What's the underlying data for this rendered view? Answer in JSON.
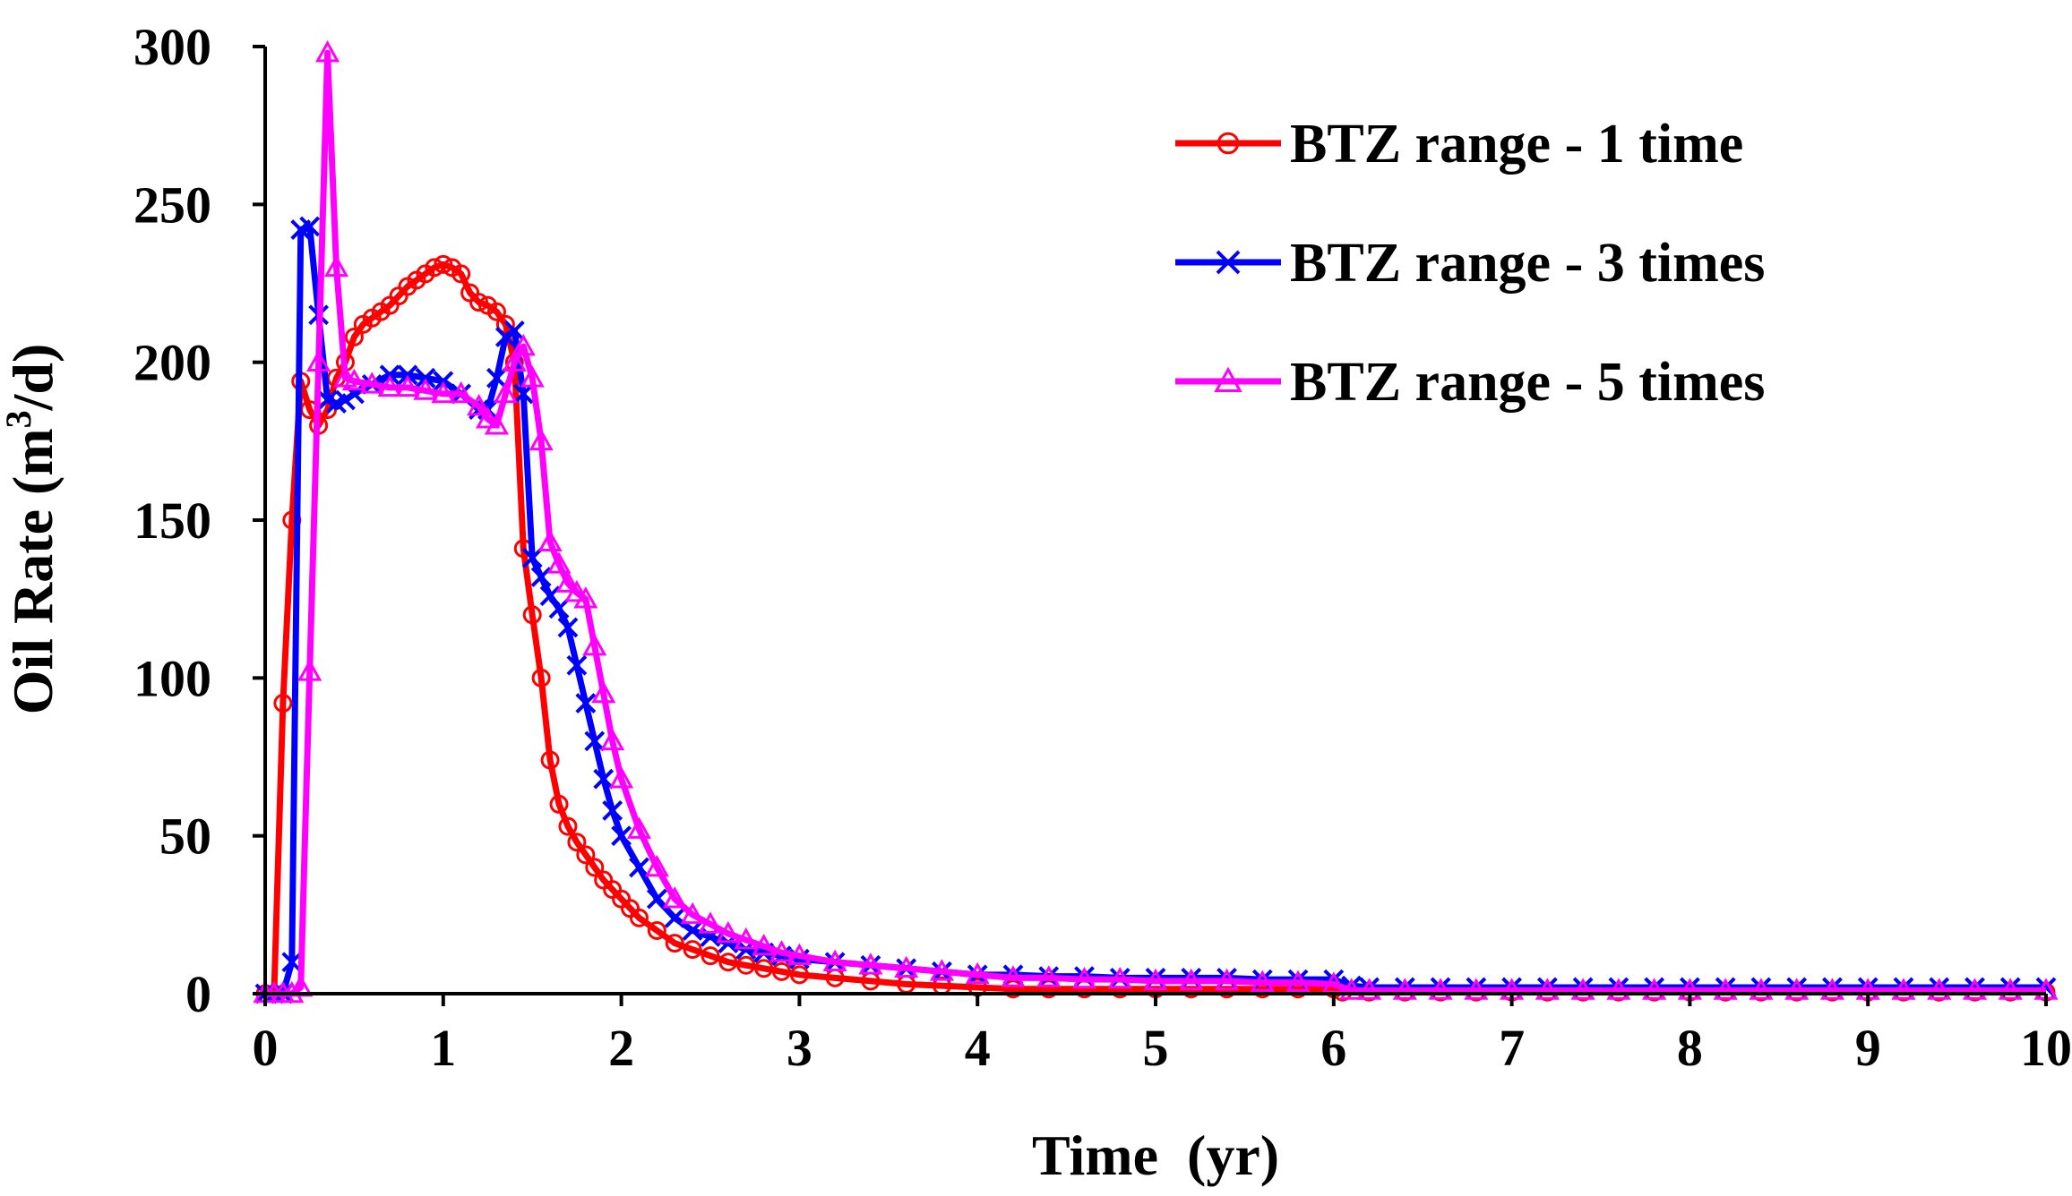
{
  "chart_data": {
    "type": "line",
    "title": "",
    "xlabel": "Time  (yr)",
    "ylabel_main": "Oil Rate (m",
    "ylabel_sup": "3",
    "ylabel_tail": "/d)",
    "xlim": [
      0,
      10
    ],
    "ylim": [
      0,
      300
    ],
    "xticks": [
      "0",
      "1",
      "2",
      "3",
      "4",
      "5",
      "6",
      "7",
      "8",
      "9",
      "10"
    ],
    "yticks": [
      "0",
      "50",
      "100",
      "150",
      "200",
      "250",
      "300"
    ],
    "grid": false,
    "legend_position": "top-right",
    "series": [
      {
        "name": "BTZ range - 1 time",
        "color": "#ff0000",
        "marker": "circle",
        "x": [
          0.0,
          0.05,
          0.1,
          0.15,
          0.2,
          0.25,
          0.3,
          0.35,
          0.4,
          0.45,
          0.5,
          0.55,
          0.6,
          0.65,
          0.7,
          0.75,
          0.8,
          0.85,
          0.9,
          0.95,
          1.0,
          1.05,
          1.1,
          1.15,
          1.2,
          1.25,
          1.3,
          1.35,
          1.4,
          1.45,
          1.5,
          1.55,
          1.6,
          1.65,
          1.7,
          1.75,
          1.8,
          1.85,
          1.9,
          1.95,
          2.0,
          2.05,
          2.1,
          2.2,
          2.3,
          2.4,
          2.5,
          2.6,
          2.7,
          2.8,
          2.9,
          3.0,
          3.2,
          3.4,
          3.6,
          3.8,
          4.0,
          4.2,
          4.4,
          4.6,
          4.8,
          5.0,
          5.2,
          5.4,
          5.6,
          5.8,
          6.0,
          6.05,
          6.2,
          6.4,
          6.6,
          6.8,
          7.0,
          7.2,
          7.4,
          7.6,
          7.8,
          8.0,
          8.2,
          8.4,
          8.6,
          8.8,
          9.0,
          9.2,
          9.4,
          9.6,
          9.8,
          10.0
        ],
        "y": [
          0,
          0,
          92,
          150,
          194,
          185,
          180,
          185,
          195,
          200,
          208,
          212,
          214,
          216,
          218,
          221,
          224,
          226,
          228,
          230,
          231,
          230,
          228,
          222,
          219,
          218,
          216,
          212,
          200,
          141,
          120,
          100,
          74,
          60,
          53,
          48,
          44,
          40,
          36,
          33,
          30,
          27,
          24,
          20,
          16,
          14,
          12,
          10,
          9,
          8,
          7,
          6,
          5,
          4,
          3,
          2.5,
          2,
          1.5,
          1.5,
          1.5,
          1.5,
          1.5,
          1.5,
          1.5,
          1.5,
          1.5,
          1.5,
          0.5,
          0.5,
          0.5,
          0.5,
          0.5,
          0.5,
          0.5,
          0.5,
          0.5,
          0.5,
          0.5,
          0.5,
          0.5,
          0.5,
          0.5,
          0.5,
          0.5,
          0.5,
          0.5,
          0.5,
          0.5
        ]
      },
      {
        "name": "BTZ range - 3 times",
        "color": "#0000ff",
        "marker": "x",
        "x": [
          0.0,
          0.05,
          0.1,
          0.15,
          0.2,
          0.25,
          0.3,
          0.35,
          0.4,
          0.45,
          0.5,
          0.6,
          0.7,
          0.8,
          0.9,
          1.0,
          1.1,
          1.2,
          1.25,
          1.3,
          1.35,
          1.4,
          1.45,
          1.5,
          1.55,
          1.6,
          1.65,
          1.7,
          1.75,
          1.8,
          1.85,
          1.9,
          1.95,
          2.0,
          2.1,
          2.2,
          2.3,
          2.4,
          2.5,
          2.6,
          2.7,
          2.8,
          2.9,
          3.0,
          3.2,
          3.4,
          3.6,
          3.8,
          4.0,
          4.2,
          4.4,
          4.6,
          4.8,
          5.0,
          5.2,
          5.4,
          5.6,
          5.8,
          6.0,
          6.1,
          6.2,
          6.4,
          6.6,
          6.8,
          7.0,
          7.2,
          7.4,
          7.6,
          7.8,
          8.0,
          8.2,
          8.4,
          8.6,
          8.8,
          9.0,
          9.2,
          9.4,
          9.6,
          9.8,
          10.0
        ],
        "y": [
          0,
          0,
          0,
          10,
          242,
          243,
          215,
          188,
          187,
          188,
          190,
          193,
          196,
          196,
          195,
          194,
          190,
          185,
          185,
          195,
          208,
          210,
          190,
          138,
          132,
          126,
          122,
          116,
          104,
          92,
          80,
          68,
          58,
          50,
          40,
          30,
          24,
          20,
          18,
          16,
          14,
          13,
          12,
          11,
          10,
          9,
          8,
          7,
          6,
          6,
          5.5,
          5.5,
          5,
          5,
          5,
          5,
          4.5,
          4.5,
          4.5,
          2.5,
          2,
          2,
          2,
          2,
          2,
          2,
          2,
          2,
          2,
          2,
          2,
          2,
          2,
          2,
          2,
          2,
          2,
          2,
          2,
          2
        ]
      },
      {
        "name": "BTZ range - 5 times",
        "color": "#ff00ff",
        "marker": "triangle",
        "x": [
          0.0,
          0.05,
          0.1,
          0.15,
          0.2,
          0.25,
          0.3,
          0.35,
          0.4,
          0.45,
          0.5,
          0.6,
          0.7,
          0.8,
          0.9,
          1.0,
          1.1,
          1.2,
          1.25,
          1.3,
          1.35,
          1.4,
          1.45,
          1.5,
          1.55,
          1.6,
          1.65,
          1.7,
          1.75,
          1.8,
          1.85,
          1.9,
          1.95,
          2.0,
          2.1,
          2.2,
          2.3,
          2.4,
          2.5,
          2.6,
          2.7,
          2.8,
          2.9,
          3.0,
          3.2,
          3.4,
          3.6,
          3.8,
          4.0,
          4.2,
          4.4,
          4.6,
          4.8,
          5.0,
          5.2,
          5.4,
          5.6,
          5.8,
          6.0,
          6.1,
          6.2,
          6.4,
          6.6,
          6.8,
          7.0,
          7.2,
          7.4,
          7.6,
          7.8,
          8.0,
          8.2,
          8.4,
          8.6,
          8.8,
          9.0,
          9.2,
          9.4,
          9.6,
          9.8,
          10.0
        ],
        "y": [
          0,
          0,
          0,
          0,
          2,
          102,
          200,
          298,
          230,
          195,
          194,
          193,
          192,
          192,
          191,
          190,
          190,
          186,
          182,
          180,
          190,
          200,
          205,
          195,
          175,
          143,
          136,
          130,
          127,
          125,
          110,
          95,
          80,
          68,
          52,
          40,
          30,
          25,
          22,
          19,
          17,
          15,
          13,
          12,
          10,
          9,
          8,
          7,
          6,
          5,
          5,
          4.5,
          4.5,
          4,
          4,
          4,
          3.5,
          3.5,
          3,
          1,
          1,
          1,
          1,
          1,
          1,
          1,
          1,
          1,
          1,
          1,
          1,
          1,
          1,
          1,
          1,
          1,
          1,
          1,
          1,
          1
        ]
      }
    ]
  }
}
